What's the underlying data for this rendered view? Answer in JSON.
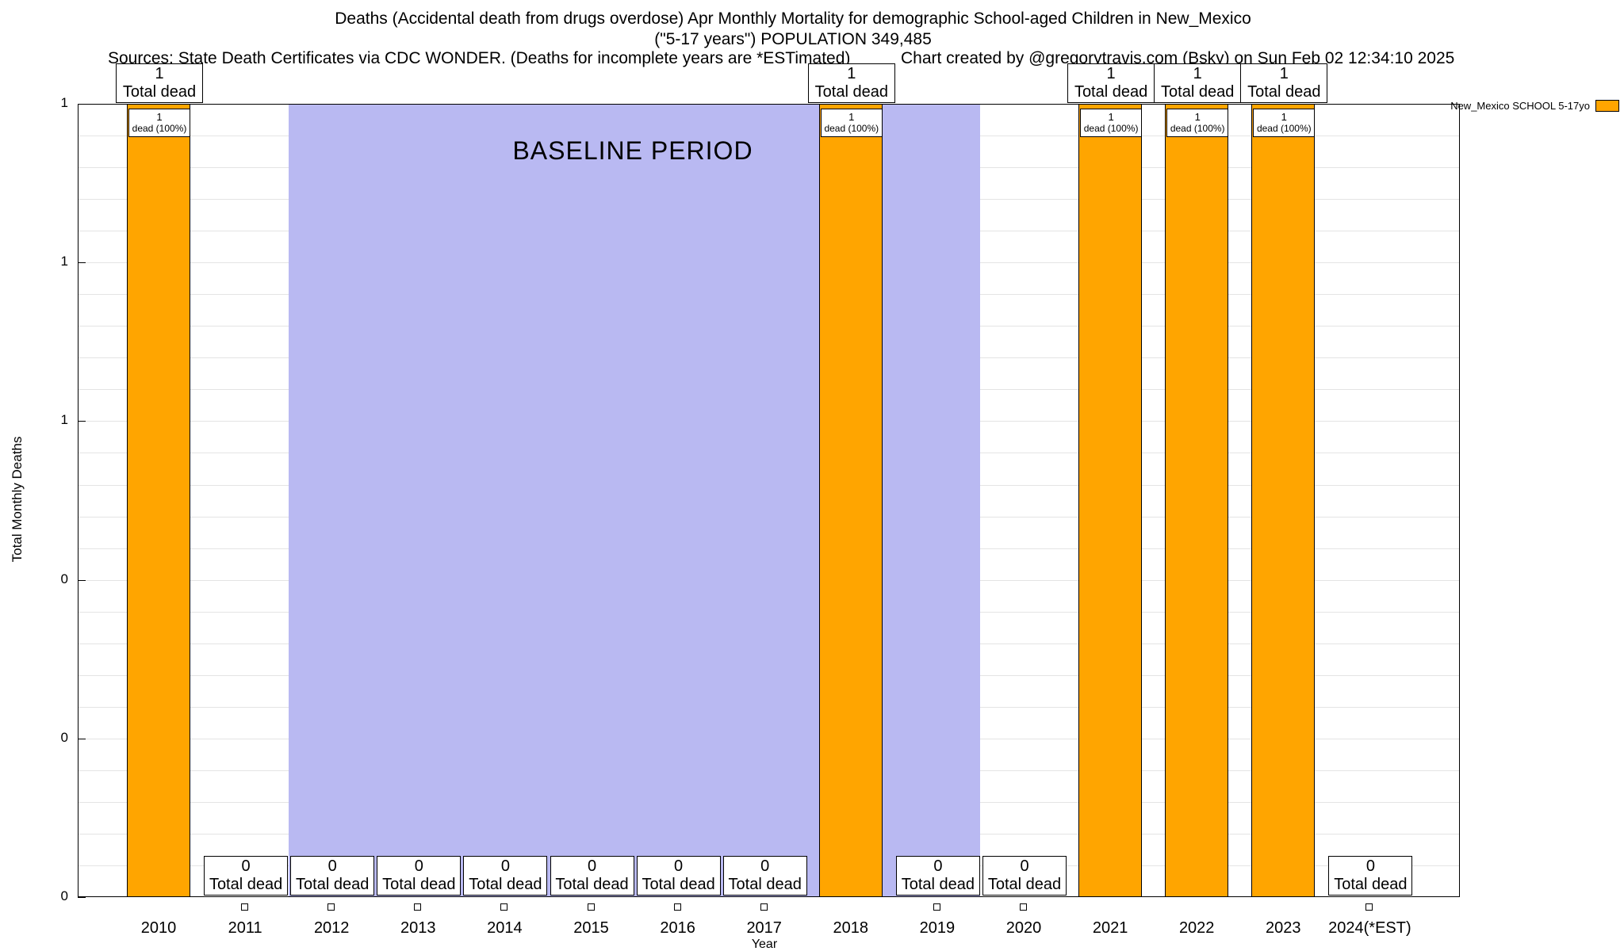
{
  "header": {
    "title_line1": "Deaths (Accidental death from drugs overdose) Apr Monthly Mortality for demographic School-aged Children in New_Mexico",
    "title_line2": "(\"5-17 years\") POPULATION 349,485",
    "sources": "Sources: State Death Certificates via CDC WONDER. (Deaths for incomplete years are *ESTimated)",
    "credit": "Chart created by @gregorytravis.com (Bsky) on Sun Feb 02 12:34:10 2025"
  },
  "chart_data": {
    "type": "bar",
    "title": "Deaths (Accidental death from drugs overdose) Apr Monthly Mortality for demographic School-aged Children in New_Mexico",
    "subtitle": "(\"5-17 years\") POPULATION 349,485",
    "xlabel": "Year",
    "ylabel": "Total Monthly Deaths",
    "ylim": [
      0,
      1
    ],
    "grid": true,
    "y_tick_labels": [
      "1",
      "1",
      "1",
      "0",
      "0",
      "0"
    ],
    "categories": [
      "2010",
      "2011",
      "2012",
      "2013",
      "2014",
      "2015",
      "2016",
      "2017",
      "2018",
      "2019",
      "2020",
      "2021",
      "2022",
      "2023",
      "2024(*EST)"
    ],
    "series": [
      {
        "name": "New_Mexico SCHOOL 5-17yo",
        "color": "#FFA500",
        "values": [
          1,
          0,
          0,
          0,
          0,
          0,
          0,
          0,
          1,
          0,
          0,
          1,
          1,
          1,
          0
        ]
      }
    ],
    "labels": {
      "total_dead": "Total dead",
      "dead_pct": "dead (100%)"
    },
    "baseline": {
      "label": "BASELINE PERIOD",
      "from_category": "2012",
      "to_category": "2019",
      "color": "#b9b9f2"
    },
    "legend": {
      "position": "top-right",
      "entries": [
        {
          "label": "New_Mexico SCHOOL 5-17yo",
          "color": "#FFA500"
        }
      ]
    }
  }
}
